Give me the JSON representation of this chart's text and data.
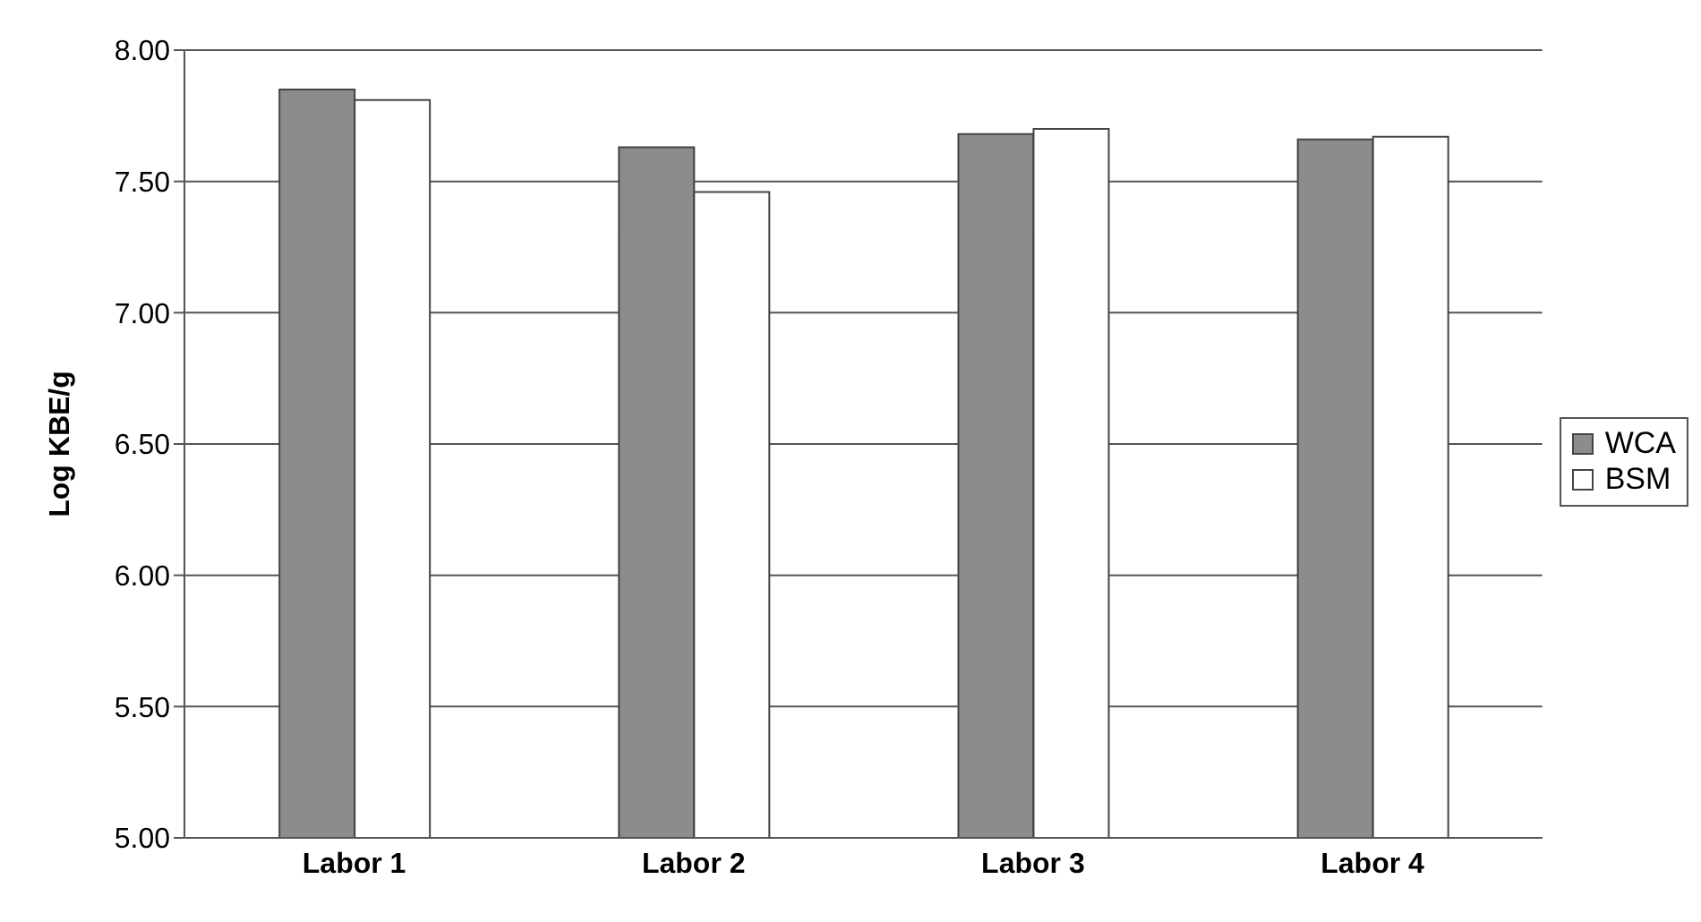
{
  "chart_data": {
    "type": "bar",
    "ylabel": "Log KBE/g",
    "categories": [
      "Labor 1",
      "Labor 2",
      "Labor 3",
      "Labor 4"
    ],
    "series": [
      {
        "name": "WCA",
        "color": "#8c8c8c",
        "values": [
          7.85,
          7.63,
          7.68,
          7.66
        ]
      },
      {
        "name": "BSM",
        "color": "#ffffff",
        "values": [
          7.81,
          7.46,
          7.7,
          7.67
        ]
      }
    ],
    "ylim": [
      5,
      8
    ],
    "yticks": [
      {
        "value": 5,
        "label": "5.00"
      },
      {
        "value": 5.5,
        "label": "5.50"
      },
      {
        "value": 6,
        "label": "6.00"
      },
      {
        "value": 6.5,
        "label": "6.50"
      },
      {
        "value": 7,
        "label": "7.00"
      },
      {
        "value": 7.5,
        "label": "7.50"
      },
      {
        "value": 8,
        "label": "8.00"
      }
    ],
    "grid": "y",
    "legend": "right"
  }
}
